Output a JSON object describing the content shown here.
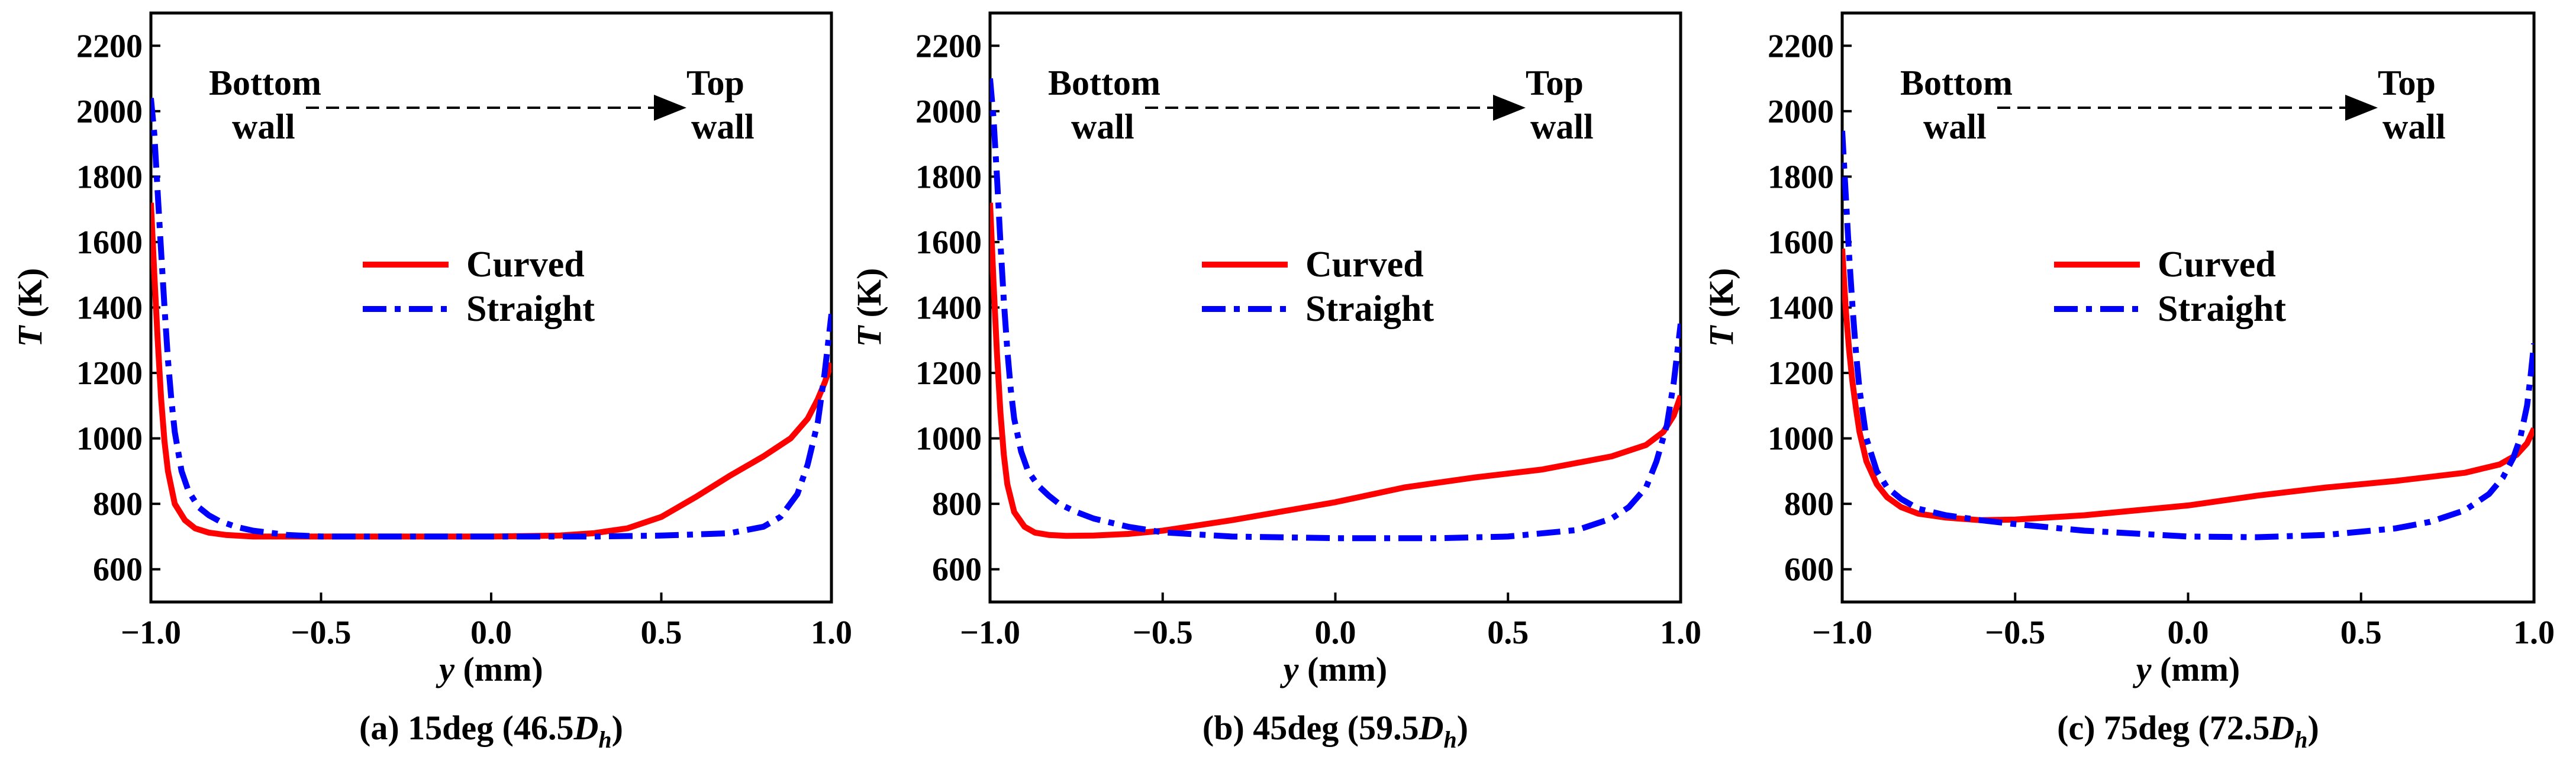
{
  "figure": {
    "ylabel_symbol": "T",
    "ylabel_unit": "(K)",
    "xlabel_symbol": "y",
    "xlabel_unit": "(mm)",
    "annotation": {
      "left_line1": "Bottom",
      "left_line2": "wall",
      "right_line1": "Top",
      "right_line2": "wall"
    },
    "legend": [
      "Curved",
      "Straight"
    ]
  },
  "colors": {
    "curved": "#ff0000",
    "straight": "#0000ff",
    "axes": "#000000"
  },
  "chart_data": [
    {
      "type": "line",
      "caption_prefix": "(a) 15deg (46.5",
      "caption_dh": "D",
      "caption_sub": "h",
      "caption_suffix": ")",
      "xlim": [
        -1.0,
        1.0
      ],
      "ylim": [
        500,
        2300
      ],
      "xticks": [
        -1.0,
        -0.5,
        0.0,
        0.5,
        1.0
      ],
      "xtick_labels": [
        "-1.0",
        "-0.5",
        "0.0",
        "0.5",
        "1.0"
      ],
      "yticks": [
        600,
        800,
        1000,
        1200,
        1400,
        1600,
        1800,
        2000,
        2200
      ],
      "ytick_labels": [
        "600",
        "800",
        "1000",
        "1200",
        "1400",
        "1600",
        "1800",
        "2000",
        "2200"
      ],
      "series": [
        {
          "name": "Curved",
          "style": "solid",
          "x": [
            -1.0,
            -0.99,
            -0.98,
            -0.97,
            -0.96,
            -0.95,
            -0.93,
            -0.9,
            -0.87,
            -0.83,
            -0.78,
            -0.7,
            -0.6,
            -0.5,
            -0.3,
            0.0,
            0.2,
            0.3,
            0.4,
            0.5,
            0.6,
            0.7,
            0.8,
            0.88,
            0.93,
            0.96,
            0.98,
            1.0
          ],
          "y": [
            1720,
            1500,
            1300,
            1120,
            990,
            900,
            800,
            750,
            725,
            712,
            705,
            700,
            700,
            700,
            700,
            700,
            703,
            710,
            725,
            760,
            820,
            885,
            945,
            1000,
            1060,
            1120,
            1170,
            1230
          ]
        },
        {
          "name": "Straight",
          "style": "dashdot",
          "x": [
            -1.0,
            -0.99,
            -0.98,
            -0.97,
            -0.96,
            -0.95,
            -0.94,
            -0.93,
            -0.91,
            -0.89,
            -0.86,
            -0.83,
            -0.8,
            -0.75,
            -0.7,
            -0.6,
            -0.5,
            -0.3,
            0.0,
            0.3,
            0.5,
            0.7,
            0.8,
            0.85,
            0.9,
            0.93,
            0.96,
            0.98,
            1.0
          ],
          "y": [
            2040,
            1930,
            1750,
            1570,
            1400,
            1240,
            1120,
            1020,
            900,
            840,
            790,
            765,
            748,
            730,
            718,
            705,
            700,
            700,
            700,
            700,
            703,
            710,
            730,
            760,
            830,
            920,
            1050,
            1200,
            1380
          ]
        }
      ]
    },
    {
      "type": "line",
      "caption_prefix": "(b) 45deg (59.5",
      "caption_dh": "D",
      "caption_sub": "h",
      "caption_suffix": ")",
      "xlim": [
        -1.0,
        1.0
      ],
      "ylim": [
        500,
        2300
      ],
      "xticks": [
        -1.0,
        -0.5,
        0.0,
        0.5,
        1.0
      ],
      "xtick_labels": [
        "-1.0",
        "-0.5",
        "0.0",
        "0.5",
        "1.0"
      ],
      "yticks": [
        600,
        800,
        1000,
        1200,
        1400,
        1600,
        1800,
        2000,
        2200
      ],
      "ytick_labels": [
        "600",
        "800",
        "1000",
        "1200",
        "1400",
        "1600",
        "1800",
        "2000",
        "2200"
      ],
      "series": [
        {
          "name": "Curved",
          "style": "solid",
          "x": [
            -1.0,
            -0.99,
            -0.98,
            -0.97,
            -0.96,
            -0.95,
            -0.93,
            -0.9,
            -0.87,
            -0.83,
            -0.78,
            -0.7,
            -0.6,
            -0.5,
            -0.3,
            0.0,
            0.2,
            0.4,
            0.6,
            0.8,
            0.9,
            0.95,
            0.98,
            1.0
          ],
          "y": [
            1720,
            1480,
            1260,
            1080,
            950,
            860,
            775,
            730,
            712,
            705,
            702,
            703,
            708,
            718,
            750,
            805,
            850,
            880,
            905,
            945,
            980,
            1020,
            1070,
            1130
          ]
        },
        {
          "name": "Straight",
          "style": "dashdot",
          "x": [
            -1.0,
            -0.99,
            -0.98,
            -0.97,
            -0.96,
            -0.95,
            -0.94,
            -0.93,
            -0.91,
            -0.89,
            -0.86,
            -0.83,
            -0.8,
            -0.75,
            -0.7,
            -0.6,
            -0.5,
            -0.3,
            0.0,
            0.3,
            0.5,
            0.7,
            0.8,
            0.85,
            0.9,
            0.93,
            0.96,
            0.98,
            1.0
          ],
          "y": [
            2100,
            1980,
            1800,
            1600,
            1420,
            1270,
            1150,
            1060,
            960,
            900,
            855,
            825,
            800,
            775,
            755,
            730,
            713,
            700,
            695,
            695,
            700,
            720,
            755,
            790,
            850,
            930,
            1040,
            1170,
            1350
          ]
        }
      ]
    },
    {
      "type": "line",
      "caption_prefix": "(c) 75deg (72.5",
      "caption_dh": "D",
      "caption_sub": "h",
      "caption_suffix": ")",
      "xlim": [
        -1.0,
        1.0
      ],
      "ylim": [
        500,
        2300
      ],
      "xticks": [
        -1.0,
        -0.5,
        0.0,
        0.5,
        1.0
      ],
      "xtick_labels": [
        "-1.0",
        "-0.5",
        "0.0",
        "0.5",
        "1.0"
      ],
      "yticks": [
        600,
        800,
        1000,
        1200,
        1400,
        1600,
        1800,
        2000,
        2200
      ],
      "ytick_labels": [
        "600",
        "800",
        "1000",
        "1200",
        "1400",
        "1600",
        "1800",
        "2000",
        "2200"
      ],
      "series": [
        {
          "name": "Curved",
          "style": "solid",
          "x": [
            -1.0,
            -0.99,
            -0.98,
            -0.97,
            -0.96,
            -0.95,
            -0.93,
            -0.9,
            -0.87,
            -0.83,
            -0.78,
            -0.7,
            -0.6,
            -0.5,
            -0.3,
            0.0,
            0.2,
            0.4,
            0.6,
            0.8,
            0.9,
            0.95,
            0.98,
            1.0
          ],
          "y": [
            1580,
            1400,
            1270,
            1170,
            1090,
            1020,
            930,
            860,
            820,
            790,
            770,
            758,
            750,
            752,
            765,
            795,
            825,
            850,
            870,
            895,
            920,
            950,
            985,
            1030
          ]
        },
        {
          "name": "Straight",
          "style": "dashdot",
          "x": [
            -1.0,
            -0.99,
            -0.98,
            -0.97,
            -0.96,
            -0.95,
            -0.93,
            -0.9,
            -0.87,
            -0.83,
            -0.78,
            -0.7,
            -0.6,
            -0.5,
            -0.3,
            0.0,
            0.2,
            0.4,
            0.6,
            0.7,
            0.8,
            0.87,
            0.91,
            0.94,
            0.96,
            0.98,
            0.99,
            1.0
          ],
          "y": [
            1940,
            1750,
            1560,
            1400,
            1260,
            1150,
            1000,
            900,
            850,
            815,
            785,
            765,
            750,
            738,
            718,
            700,
            698,
            705,
            725,
            745,
            780,
            830,
            880,
            940,
            1000,
            1100,
            1190,
            1290
          ]
        }
      ]
    }
  ]
}
